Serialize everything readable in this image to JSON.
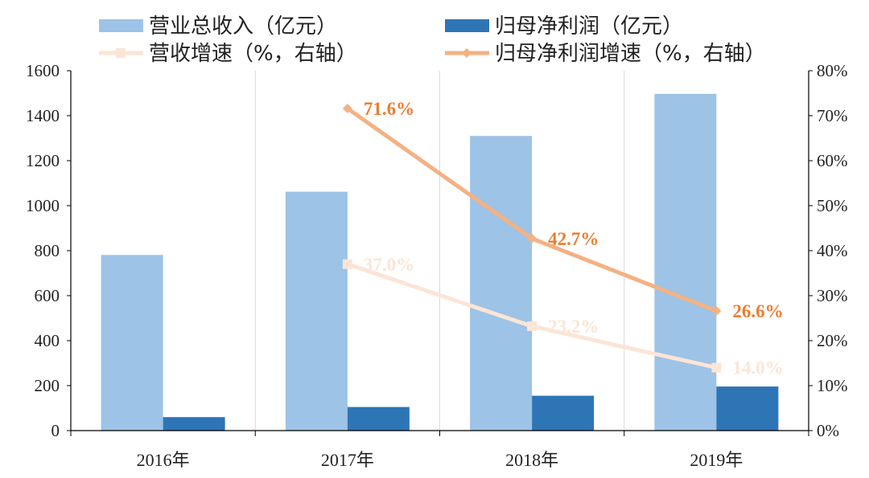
{
  "chart_data": {
    "type": "bar",
    "categories": [
      "2016年",
      "2017年",
      "2018年",
      "2019年"
    ],
    "series": [
      {
        "name": "营业总收入（亿元）",
        "kind": "bar",
        "axis": "left",
        "color": "#9DC3E6",
        "values": [
          781,
          1062,
          1310,
          1497
        ]
      },
      {
        "name": "归母净利润（亿元）",
        "kind": "bar",
        "axis": "left",
        "color": "#2E75B6",
        "values": [
          60,
          105,
          155,
          196
        ]
      },
      {
        "name": "营收增速（%，右轴）",
        "kind": "line",
        "axis": "right",
        "color": "#FBE5D6",
        "marker": "square",
        "values": [
          null,
          37.0,
          23.2,
          14.0
        ],
        "labels": [
          "",
          "37.0%",
          "23.2%",
          "14.0%"
        ]
      },
      {
        "name": "归母净利润增速（%，右轴）",
        "kind": "line",
        "axis": "right",
        "color": "#F4B183",
        "label_color": "#ED7D31",
        "marker": "diamond",
        "values": [
          null,
          71.6,
          42.7,
          26.6
        ],
        "labels": [
          "",
          "71.6%",
          "42.7%",
          "26.6%"
        ]
      }
    ],
    "left_axis": {
      "ylim": [
        0,
        1600
      ],
      "ticks": [
        "0",
        "200",
        "400",
        "600",
        "800",
        "1000",
        "1200",
        "1400",
        "1600"
      ]
    },
    "right_axis": {
      "ylim": [
        0,
        80
      ],
      "ticks": [
        "0%",
        "10%",
        "20%",
        "30%",
        "40%",
        "50%",
        "60%",
        "70%",
        "80%"
      ]
    },
    "grid": "vertical",
    "legend_position": "top"
  }
}
